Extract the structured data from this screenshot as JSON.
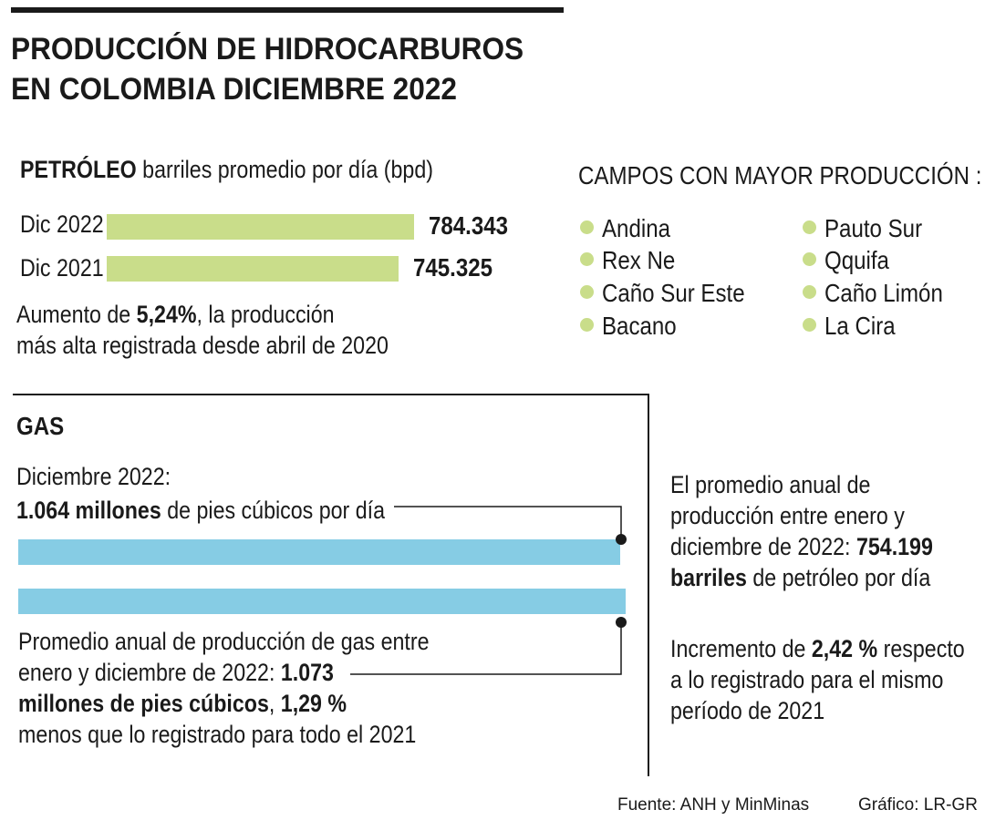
{
  "title_line1": "PRODUCCIÓN DE HIDROCARBUROS",
  "title_line2": "EN COLOMBIA DICIEMBRE 2022",
  "petroleo": {
    "label_bold": "PETRÓLEO",
    "label_rest": " barriles promedio por día (bpd)",
    "note_pre": "Aumento de ",
    "note_bold": "5,24%",
    "note_post": ",  la producción",
    "note_line2": "más alta registrada desde abril de 2020"
  },
  "campos": {
    "title": "CAMPOS CON MAYOR PRODUCCIÓN :",
    "items": [
      "Andina",
      "Rex Ne",
      "Caño Sur Este",
      "Bacano",
      "Pauto Sur",
      "Qquifa",
      "Caño Limón",
      "La Cira"
    ]
  },
  "gas": {
    "title": "GAS",
    "dec_label": "Diciembre 2022:",
    "dec_bold": "1.064 millones",
    "dec_rest": " de pies cúbicos por día",
    "avg_line1": "Promedio anual de producción de gas entre",
    "avg_line2_pre": "enero y diciembre de 2022:  ",
    "avg_line2_bold": "1.073",
    "avg_line3_bold": "millones de pies cúbicos",
    "avg_line3_mid": ", ",
    "avg_line3_bold2": "1,29 %",
    "avg_line4": "menos que lo registrado para todo el 2021"
  },
  "right_note": {
    "line1": "El promedio anual de",
    "line2": "producción entre enero y",
    "line3_pre": "diciembre de 2022:  ",
    "line3_bold": "754.199",
    "line4_bold": "barriles",
    "line4_rest": " de petróleo por día",
    "line5_pre": "Incremento de ",
    "line5_bold": "2,42 %",
    "line5_rest": " respecto",
    "line6": "a lo registrado para el mismo",
    "line7": "período de 2021"
  },
  "footer": {
    "source": "Fuente: ANH y MinMinas",
    "credit": "Gráfico: LR-GR"
  },
  "colors": {
    "oil_bar": "#c9dd8a",
    "gas_bar": "#86cce4",
    "dot": "#c9dd8a",
    "ink": "#1a1a1a"
  },
  "chart_data": [
    {
      "type": "bar",
      "orientation": "horizontal",
      "categories": [
        "Dic 2022",
        "Dic 2021"
      ],
      "values": [
        784343,
        745325
      ],
      "value_labels": [
        "784.343",
        "745.325"
      ],
      "unit": "bpd"
    },
    {
      "type": "bar",
      "orientation": "horizontal",
      "categories": [
        "Diciembre 2022",
        "Promedio anual 2022"
      ],
      "values": [
        1064,
        1073
      ],
      "unit": "millones de pies cúbicos por día"
    }
  ]
}
